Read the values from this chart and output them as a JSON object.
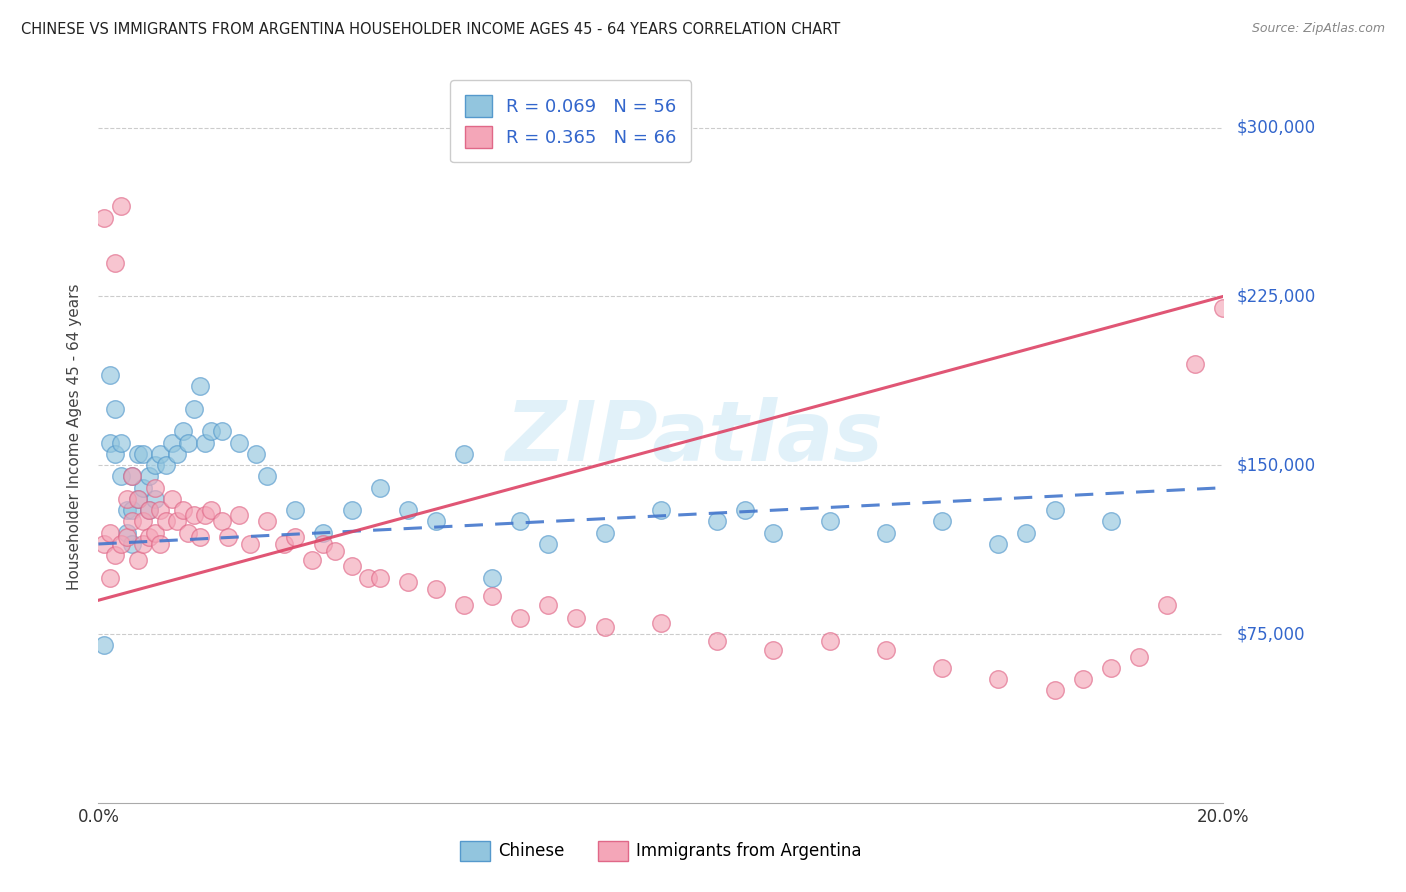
{
  "title": "CHINESE VS IMMIGRANTS FROM ARGENTINA HOUSEHOLDER INCOME AGES 45 - 64 YEARS CORRELATION CHART",
  "source": "Source: ZipAtlas.com",
  "ylabel": "Householder Income Ages 45 - 64 years",
  "yticks": [
    0,
    75000,
    150000,
    225000,
    300000
  ],
  "ytick_labels": [
    "",
    "$75,000",
    "$150,000",
    "$225,000",
    "$300,000"
  ],
  "xlim": [
    0.0,
    0.2
  ],
  "ylim": [
    0,
    325000
  ],
  "legend_chinese": "Chinese",
  "legend_argentina": "Immigrants from Argentina",
  "watermark": "ZIPatlas",
  "blue_fill": "#92c5de",
  "blue_edge": "#5599cc",
  "pink_fill": "#f4a6b8",
  "pink_edge": "#e06888",
  "blue_line_color": "#4477cc",
  "pink_line_color": "#dd4466",
  "axis_label_color": "#3366cc",
  "title_color": "#222222",
  "chinese_x": [
    0.001,
    0.002,
    0.002,
    0.003,
    0.003,
    0.004,
    0.004,
    0.005,
    0.005,
    0.006,
    0.006,
    0.006,
    0.007,
    0.007,
    0.008,
    0.008,
    0.009,
    0.009,
    0.01,
    0.01,
    0.011,
    0.012,
    0.013,
    0.014,
    0.015,
    0.016,
    0.017,
    0.018,
    0.019,
    0.02,
    0.022,
    0.025,
    0.028,
    0.03,
    0.035,
    0.04,
    0.045,
    0.05,
    0.055,
    0.06,
    0.065,
    0.07,
    0.075,
    0.08,
    0.09,
    0.1,
    0.11,
    0.115,
    0.12,
    0.13,
    0.14,
    0.15,
    0.16,
    0.165,
    0.17,
    0.18
  ],
  "chinese_y": [
    70000,
    190000,
    160000,
    175000,
    155000,
    160000,
    145000,
    130000,
    120000,
    145000,
    130000,
    115000,
    155000,
    135000,
    155000,
    140000,
    145000,
    130000,
    150000,
    135000,
    155000,
    150000,
    160000,
    155000,
    165000,
    160000,
    175000,
    185000,
    160000,
    165000,
    165000,
    160000,
    155000,
    145000,
    130000,
    120000,
    130000,
    140000,
    130000,
    125000,
    155000,
    100000,
    125000,
    115000,
    120000,
    130000,
    125000,
    130000,
    120000,
    125000,
    120000,
    125000,
    115000,
    120000,
    130000,
    125000
  ],
  "argentina_x": [
    0.001,
    0.001,
    0.002,
    0.002,
    0.003,
    0.003,
    0.004,
    0.004,
    0.005,
    0.005,
    0.006,
    0.006,
    0.007,
    0.007,
    0.008,
    0.008,
    0.009,
    0.009,
    0.01,
    0.01,
    0.011,
    0.011,
    0.012,
    0.013,
    0.014,
    0.015,
    0.016,
    0.017,
    0.018,
    0.019,
    0.02,
    0.022,
    0.023,
    0.025,
    0.027,
    0.03,
    0.033,
    0.035,
    0.038,
    0.04,
    0.042,
    0.045,
    0.048,
    0.05,
    0.055,
    0.06,
    0.065,
    0.07,
    0.075,
    0.08,
    0.085,
    0.09,
    0.1,
    0.11,
    0.12,
    0.13,
    0.14,
    0.15,
    0.16,
    0.17,
    0.175,
    0.18,
    0.185,
    0.19,
    0.195,
    0.2
  ],
  "argentina_y": [
    115000,
    260000,
    120000,
    100000,
    240000,
    110000,
    265000,
    115000,
    135000,
    118000,
    145000,
    125000,
    135000,
    108000,
    125000,
    115000,
    130000,
    118000,
    140000,
    120000,
    130000,
    115000,
    125000,
    135000,
    125000,
    130000,
    120000,
    128000,
    118000,
    128000,
    130000,
    125000,
    118000,
    128000,
    115000,
    125000,
    115000,
    118000,
    108000,
    115000,
    112000,
    105000,
    100000,
    100000,
    98000,
    95000,
    88000,
    92000,
    82000,
    88000,
    82000,
    78000,
    80000,
    72000,
    68000,
    72000,
    68000,
    60000,
    55000,
    50000,
    55000,
    60000,
    65000,
    88000,
    195000,
    220000
  ]
}
